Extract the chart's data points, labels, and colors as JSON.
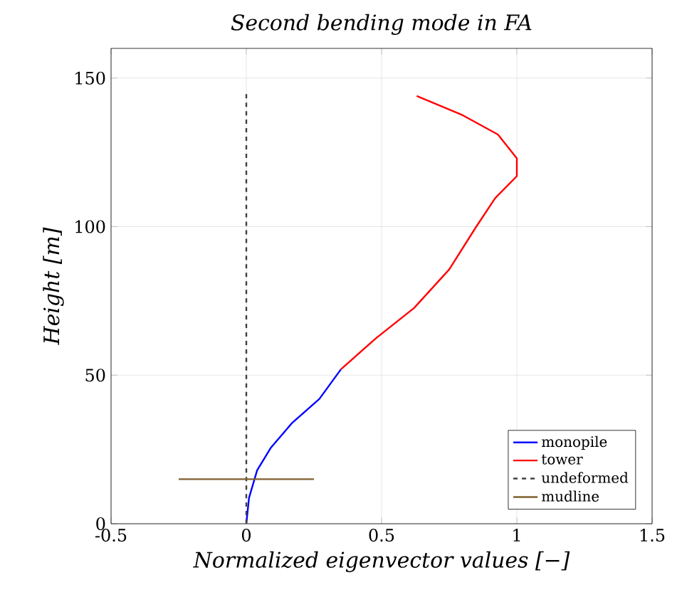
{
  "chart_data": {
    "type": "line",
    "title": "Second bending mode in FA",
    "xlabel": "Normalized eigenvector values [−]",
    "ylabel": "Height [m]",
    "xlim": [
      -0.5,
      1.5
    ],
    "ylim": [
      0,
      160
    ],
    "xticks": [
      {
        "value": -0.5,
        "label": "-0.5"
      },
      0,
      0.5,
      1,
      1.5
    ],
    "yticks": [
      0,
      50,
      100,
      150
    ],
    "grid": true,
    "legend": "bottom right",
    "series": [
      {
        "name": "monopile",
        "color": "#0000ff",
        "line_style": "solid",
        "x": [
          0,
          0.01,
          0.04,
          0.09,
          0.17,
          0.27,
          0.35
        ],
        "values": [
          0,
          8.7,
          18,
          25.5,
          34,
          42,
          52
        ]
      },
      {
        "name": "tower",
        "color": "#ff0000",
        "line_style": "solid",
        "x": [
          0.35,
          0.48,
          0.62,
          0.75,
          0.85,
          0.92,
          1.0,
          1.0,
          0.93,
          0.8,
          0.63
        ],
        "values": [
          52,
          62.5,
          72.6,
          85.6,
          100,
          109.6,
          117,
          123,
          131,
          137.5,
          144
        ]
      },
      {
        "name": "undeformed",
        "color": "#404040",
        "line_style": "dashed",
        "x": [
          0,
          0
        ],
        "values": [
          0,
          145
        ]
      },
      {
        "name": "mudline",
        "color": "#7f5f2f",
        "line_style": "solid",
        "x": [
          -0.25,
          0.25
        ],
        "values": [
          15,
          15
        ]
      }
    ]
  }
}
